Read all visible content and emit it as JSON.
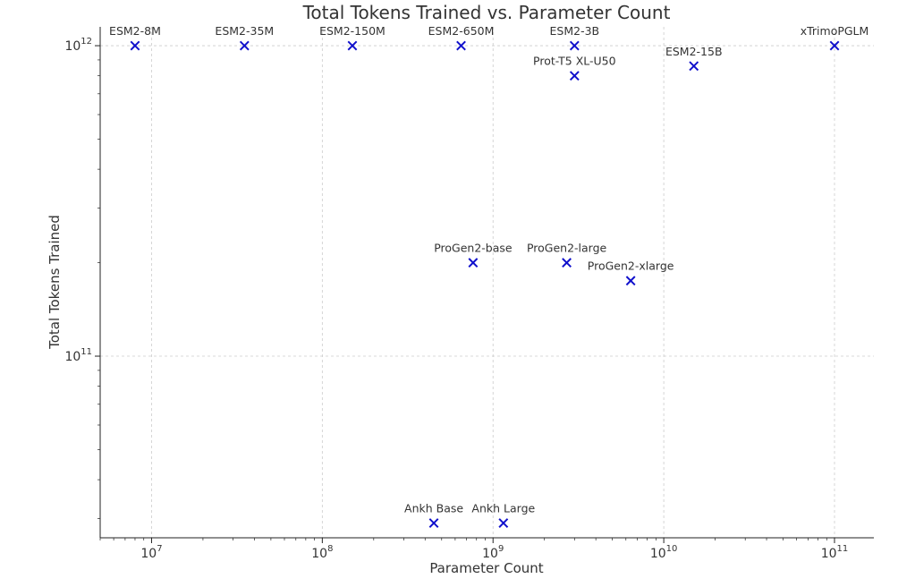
{
  "chart_data": {
    "type": "scatter",
    "title": "Total Tokens Trained vs. Parameter Count",
    "xlabel": "Parameter Count",
    "ylabel": "Total Tokens Trained",
    "x_scale": "log",
    "y_scale": "log",
    "xlim": [
      5000000,
      170000000000
    ],
    "ylim": [
      26000000000,
      1150000000000
    ],
    "x_ticks": [
      {
        "value": 10000000,
        "base": "10",
        "exp": "7"
      },
      {
        "value": 100000000,
        "base": "10",
        "exp": "8"
      },
      {
        "value": 1000000000,
        "base": "10",
        "exp": "9"
      },
      {
        "value": 10000000000,
        "base": "10",
        "exp": "10"
      },
      {
        "value": 100000000000,
        "base": "10",
        "exp": "11"
      }
    ],
    "y_ticks": [
      {
        "value": 100000000000,
        "base": "10",
        "exp": "11"
      },
      {
        "value": 1000000000000,
        "base": "10",
        "exp": "12"
      }
    ],
    "grid": true,
    "marker": "x",
    "marker_color": "#1010cc",
    "points": [
      {
        "label": "ESM2-8M",
        "x": 8000000,
        "y": 1000000000000
      },
      {
        "label": "ESM2-35M",
        "x": 35000000,
        "y": 1000000000000
      },
      {
        "label": "ESM2-150M",
        "x": 150000000,
        "y": 1000000000000
      },
      {
        "label": "ESM2-650M",
        "x": 650000000,
        "y": 1000000000000
      },
      {
        "label": "ESM2-3B",
        "x": 3000000000,
        "y": 1000000000000
      },
      {
        "label": "ESM2-15B",
        "x": 15000000000,
        "y": 860000000000
      },
      {
        "label": "xTrimoPGLM",
        "x": 100000000000,
        "y": 1000000000000
      },
      {
        "label": "Prot-T5 XL-U50",
        "x": 3000000000,
        "y": 800000000000
      },
      {
        "label": "ProGen2-base",
        "x": 764000000,
        "y": 200000000000
      },
      {
        "label": "ProGen2-large",
        "x": 2700000000,
        "y": 200000000000
      },
      {
        "label": "ProGen2-xlarge",
        "x": 6400000000,
        "y": 175000000000
      },
      {
        "label": "Ankh Base",
        "x": 450000000,
        "y": 29000000000
      },
      {
        "label": "Ankh Large",
        "x": 1150000000,
        "y": 29000000000
      }
    ]
  }
}
